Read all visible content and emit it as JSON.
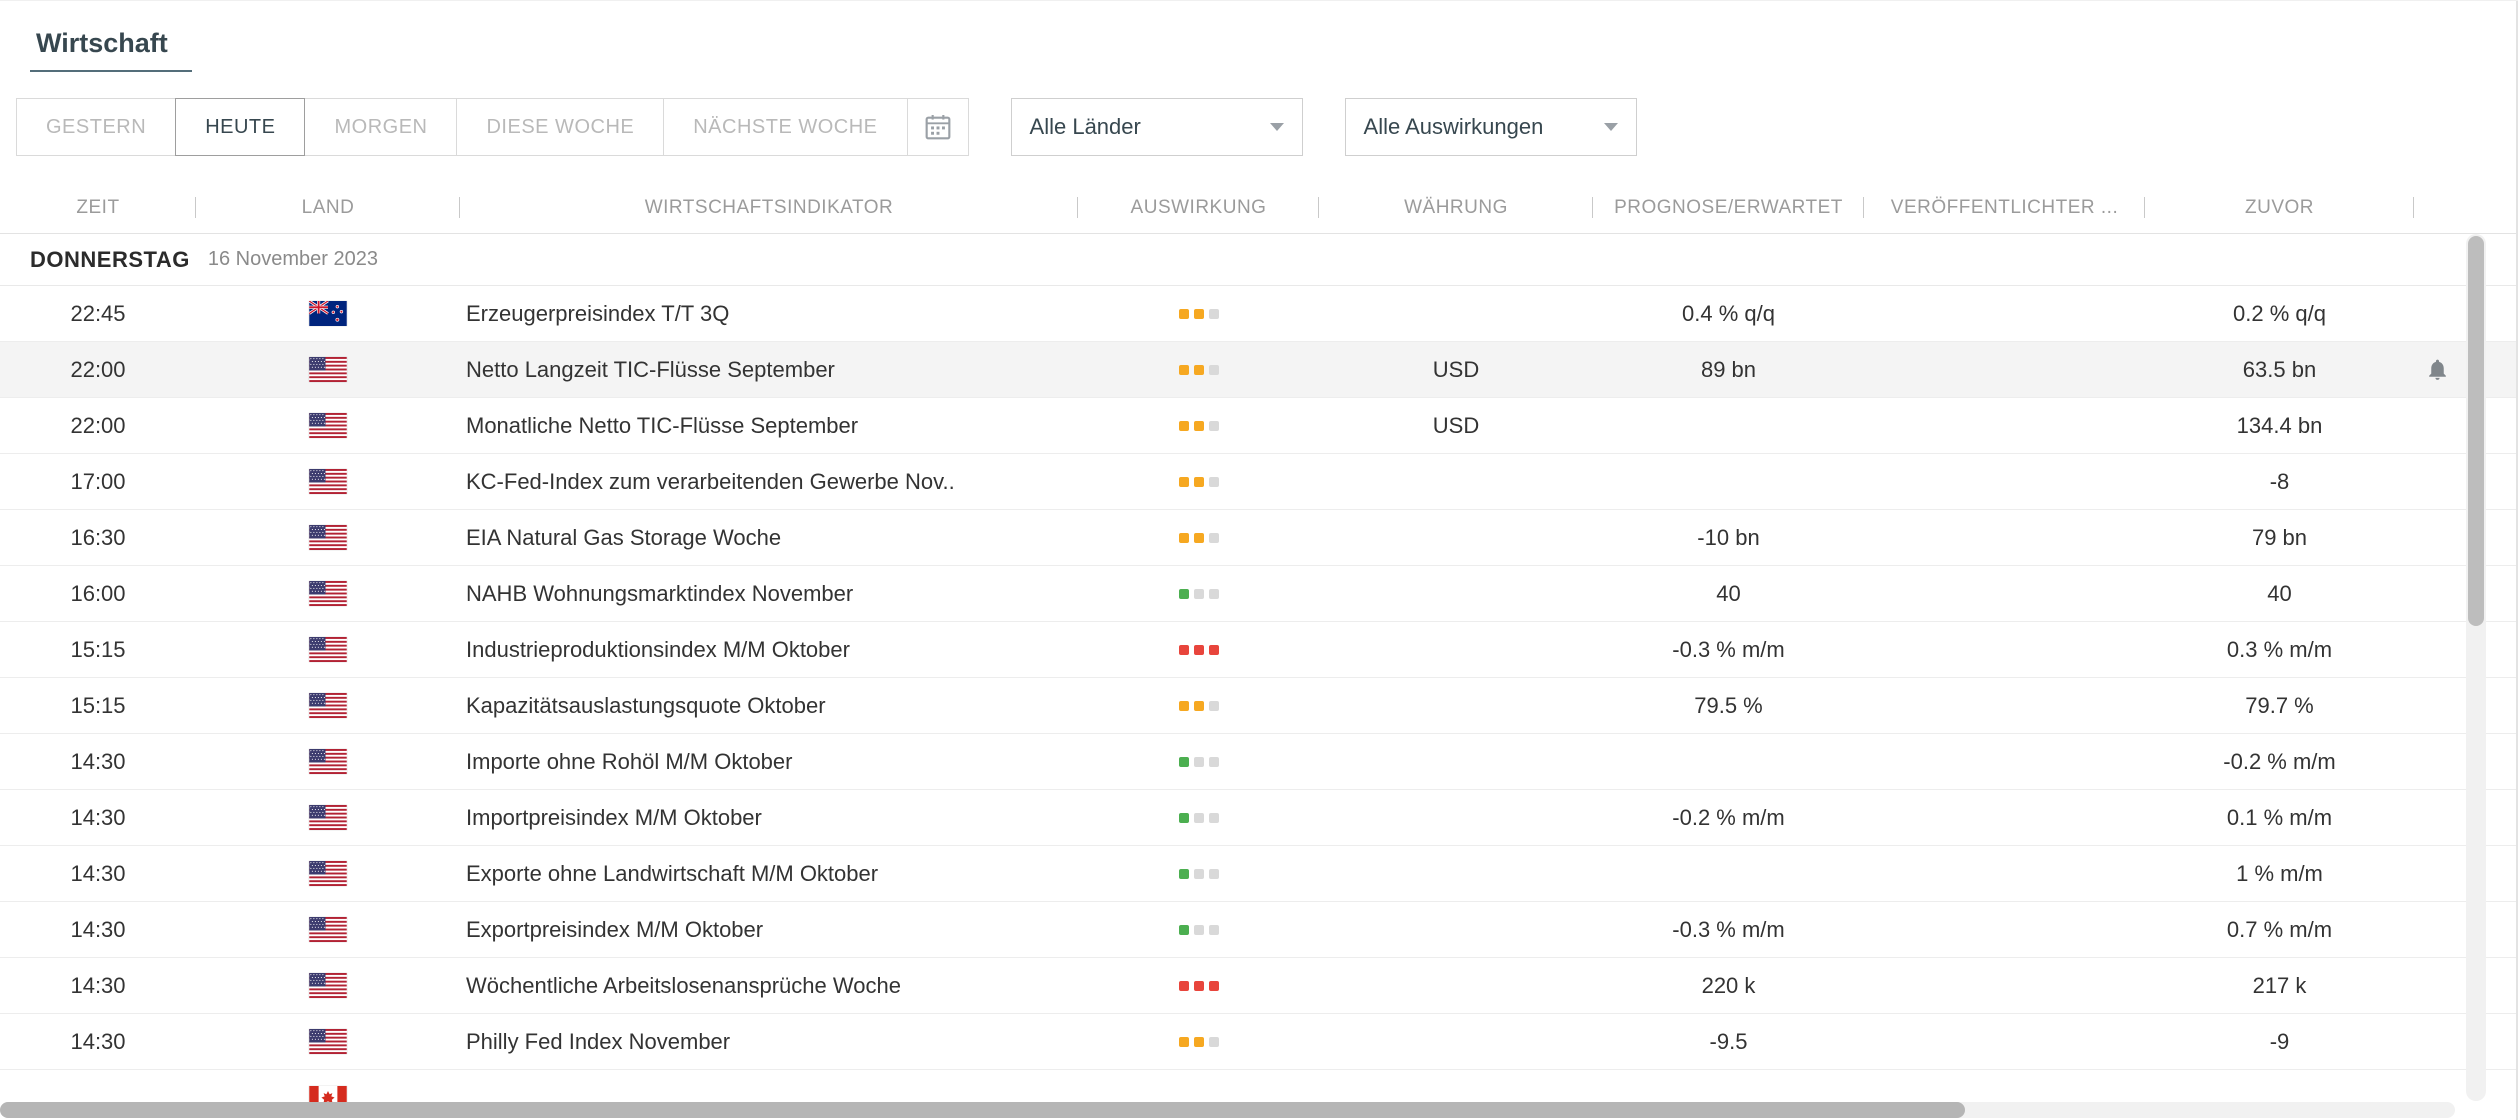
{
  "page": {
    "title": "Wirtschaft"
  },
  "filters": {
    "tabs": [
      {
        "id": "gestern",
        "label": "GESTERN",
        "active": false
      },
      {
        "id": "heute",
        "label": "HEUTE",
        "active": true
      },
      {
        "id": "morgen",
        "label": "MORGEN",
        "active": false
      },
      {
        "id": "diese-woche",
        "label": "DIESE WOCHE",
        "active": false
      },
      {
        "id": "naechste-woche",
        "label": "NÄCHSTE WOCHE",
        "active": false
      }
    ],
    "calendar_button_icon": "calendar-icon",
    "country_filter": {
      "value": "Alle Länder",
      "icon": "chevron-down-icon"
    },
    "impact_filter": {
      "value": "Alle Auswirkungen",
      "icon": "chevron-down-icon"
    }
  },
  "table": {
    "columns": [
      {
        "id": "zeit",
        "label": "ZEIT"
      },
      {
        "id": "land",
        "label": "LAND"
      },
      {
        "id": "wirtschaftsindikator",
        "label": "WIRTSCHAFTSINDIKATOR"
      },
      {
        "id": "auswirkung",
        "label": "AUSWIRKUNG"
      },
      {
        "id": "waehrung",
        "label": "WÄHRUNG"
      },
      {
        "id": "prognose-erwartet",
        "label": "PROGNOSE/ERWARTET"
      },
      {
        "id": "veroeffentlichter",
        "label": "VERÖFFENTLICHTER ..."
      },
      {
        "id": "zuvor",
        "label": "ZUVOR"
      }
    ],
    "day_header": {
      "day": "DONNERSTAG",
      "date": "16 November 2023"
    },
    "rows": [
      {
        "time": "22:45",
        "country": "nz",
        "indicator": "Erzeugerpreisindex T/T 3Q",
        "impact": "medium",
        "currency": "",
        "forecast": "0.4 % q/q",
        "published": "",
        "previous": "0.2 % q/q",
        "highlighted": false,
        "alert": false
      },
      {
        "time": "22:00",
        "country": "us",
        "indicator": "Netto Langzeit TIC-Flüsse September",
        "impact": "medium",
        "currency": "USD",
        "forecast": "89 bn",
        "published": "",
        "previous": "63.5 bn",
        "highlighted": true,
        "alert": true
      },
      {
        "time": "22:00",
        "country": "us",
        "indicator": "Monatliche Netto TIC-Flüsse September",
        "impact": "medium",
        "currency": "USD",
        "forecast": "",
        "published": "",
        "previous": "134.4 bn",
        "highlighted": false,
        "alert": false
      },
      {
        "time": "17:00",
        "country": "us",
        "indicator": "KC-Fed-Index zum verarbeitenden Gewerbe Nov..",
        "impact": "medium",
        "currency": "",
        "forecast": "",
        "published": "",
        "previous": "-8",
        "highlighted": false,
        "alert": false
      },
      {
        "time": "16:30",
        "country": "us",
        "indicator": "EIA Natural Gas Storage Woche",
        "impact": "medium",
        "currency": "",
        "forecast": "-10 bn",
        "published": "",
        "previous": "79 bn",
        "highlighted": false,
        "alert": false
      },
      {
        "time": "16:00",
        "country": "us",
        "indicator": "NAHB Wohnungsmarktindex November",
        "impact": "low",
        "currency": "",
        "forecast": "40",
        "published": "",
        "previous": "40",
        "highlighted": false,
        "alert": false
      },
      {
        "time": "15:15",
        "country": "us",
        "indicator": "Industrieproduktionsindex M/M Oktober",
        "impact": "high",
        "currency": "",
        "forecast": "-0.3 % m/m",
        "published": "",
        "previous": "0.3 % m/m",
        "highlighted": false,
        "alert": false
      },
      {
        "time": "15:15",
        "country": "us",
        "indicator": "Kapazitätsauslastungsquote Oktober",
        "impact": "medium",
        "currency": "",
        "forecast": "79.5 %",
        "published": "",
        "previous": "79.7 %",
        "highlighted": false,
        "alert": false
      },
      {
        "time": "14:30",
        "country": "us",
        "indicator": "Importe ohne Rohöl M/M Oktober",
        "impact": "low",
        "currency": "",
        "forecast": "",
        "published": "",
        "previous": "-0.2 % m/m",
        "highlighted": false,
        "alert": false
      },
      {
        "time": "14:30",
        "country": "us",
        "indicator": "Importpreisindex M/M Oktober",
        "impact": "low",
        "currency": "",
        "forecast": "-0.2 % m/m",
        "published": "",
        "previous": "0.1 % m/m",
        "highlighted": false,
        "alert": false
      },
      {
        "time": "14:30",
        "country": "us",
        "indicator": "Exporte ohne Landwirtschaft M/M Oktober",
        "impact": "low",
        "currency": "",
        "forecast": "",
        "published": "",
        "previous": "1 % m/m",
        "highlighted": false,
        "alert": false
      },
      {
        "time": "14:30",
        "country": "us",
        "indicator": "Exportpreisindex M/M Oktober",
        "impact": "low",
        "currency": "",
        "forecast": "-0.3 % m/m",
        "published": "",
        "previous": "0.7 % m/m",
        "highlighted": false,
        "alert": false
      },
      {
        "time": "14:30",
        "country": "us",
        "indicator": "Wöchentliche Arbeitslosenansprüche Woche",
        "impact": "high",
        "currency": "",
        "forecast": "220 k",
        "published": "",
        "previous": "217 k",
        "highlighted": false,
        "alert": false
      },
      {
        "time": "14:30",
        "country": "us",
        "indicator": "Philly Fed Index November",
        "impact": "medium",
        "currency": "",
        "forecast": "-9.5",
        "published": "",
        "previous": "-9",
        "highlighted": false,
        "alert": false
      },
      {
        "time": "",
        "country": "ca",
        "indicator": "",
        "impact": "none",
        "currency": "",
        "forecast": "",
        "published": "",
        "previous": "",
        "highlighted": false,
        "alert": false,
        "partial": true
      }
    ]
  },
  "icons": {
    "alert": "bell-icon",
    "calendar": "calendar-icon",
    "dropdown": "chevron-down-icon"
  },
  "colors": {
    "impact_low": "#4CAF50",
    "impact_medium": "#F6A821",
    "impact_high": "#E8453C",
    "impact_off": "#D9D9D9",
    "row_highlight": "#F4F4F4",
    "accent_text": "#37474F"
  }
}
